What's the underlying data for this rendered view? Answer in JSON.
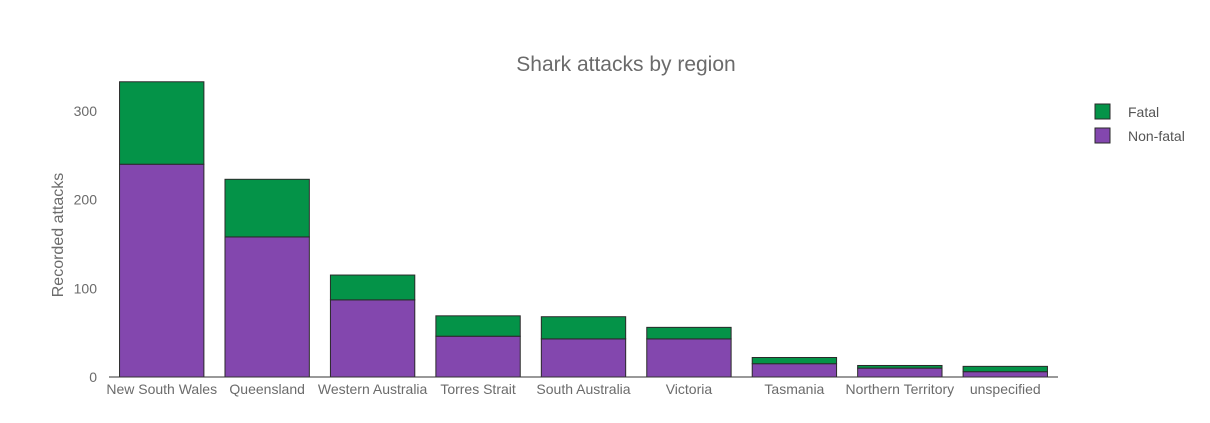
{
  "chart_data": {
    "type": "bar",
    "stacked": true,
    "title": "Shark attacks by region",
    "xlabel": "",
    "ylabel": "Recorded attacks",
    "ylim": [
      0,
      335
    ],
    "yticks": [
      0,
      100,
      200,
      300
    ],
    "grid": false,
    "legend_position": "top-right",
    "categories": [
      "New South Wales",
      "Queensland",
      "Western Australia",
      "Torres Strait",
      "South Australia",
      "Victoria",
      "Tasmania",
      "Northern Territory",
      "unspecified"
    ],
    "series": [
      {
        "name": "Non-fatal",
        "color": "#8347ae",
        "values": [
          240,
          158,
          87,
          46,
          43,
          43,
          15,
          10,
          6
        ]
      },
      {
        "name": "Fatal",
        "color": "#049348",
        "values": [
          93,
          65,
          28,
          23,
          25,
          13,
          7,
          3,
          6
        ]
      }
    ],
    "legend_order": [
      "Fatal",
      "Non-fatal"
    ]
  }
}
